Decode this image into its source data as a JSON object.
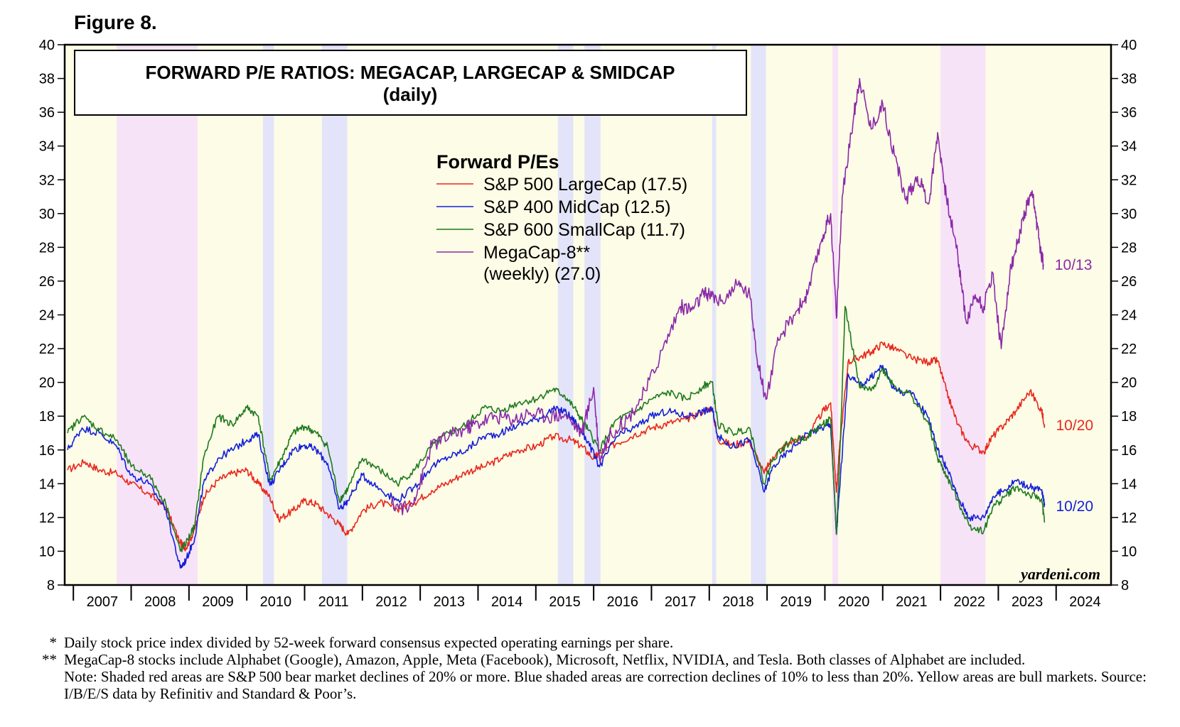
{
  "figure_label": "Figure 8.",
  "chart_data": {
    "type": "line",
    "title": "FORWARD P/E RATIOS: MEGACAP, LARGECAP & SMIDCAP",
    "subtitle": "(daily)",
    "legend_title": "Forward P/Es",
    "legend_position": "top-center",
    "source_credit": "yardeni.com",
    "xlim": [
      2006.85,
      2024.95
    ],
    "ylim": [
      8,
      40
    ],
    "y_ticks": [
      8,
      10,
      12,
      14,
      16,
      18,
      20,
      22,
      24,
      26,
      28,
      30,
      32,
      34,
      36,
      38,
      40
    ],
    "x_tick_labels": [
      "2007",
      "2008",
      "2009",
      "2010",
      "2011",
      "2012",
      "2013",
      "2014",
      "2015",
      "2016",
      "2017",
      "2018",
      "2019",
      "2020",
      "2021",
      "2022",
      "2023",
      "2024"
    ],
    "grid": false,
    "shaded_periods": [
      {
        "start": 2006.85,
        "end": 2007.75,
        "kind": "bull"
      },
      {
        "start": 2007.75,
        "end": 2009.15,
        "kind": "bear"
      },
      {
        "start": 2009.15,
        "end": 2010.28,
        "kind": "bull"
      },
      {
        "start": 2010.28,
        "end": 2010.47,
        "kind": "correction"
      },
      {
        "start": 2010.47,
        "end": 2011.3,
        "kind": "bull"
      },
      {
        "start": 2011.3,
        "end": 2011.74,
        "kind": "correction"
      },
      {
        "start": 2011.74,
        "end": 2015.38,
        "kind": "bull"
      },
      {
        "start": 2015.38,
        "end": 2015.65,
        "kind": "correction"
      },
      {
        "start": 2015.65,
        "end": 2015.84,
        "kind": "bull"
      },
      {
        "start": 2015.84,
        "end": 2016.12,
        "kind": "correction"
      },
      {
        "start": 2016.12,
        "end": 2018.05,
        "kind": "bull"
      },
      {
        "start": 2018.05,
        "end": 2018.12,
        "kind": "correction"
      },
      {
        "start": 2018.12,
        "end": 2018.72,
        "kind": "bull"
      },
      {
        "start": 2018.72,
        "end": 2018.98,
        "kind": "correction"
      },
      {
        "start": 2018.98,
        "end": 2020.13,
        "kind": "bull"
      },
      {
        "start": 2020.13,
        "end": 2020.23,
        "kind": "bear"
      },
      {
        "start": 2020.23,
        "end": 2022.0,
        "kind": "bull"
      },
      {
        "start": 2022.0,
        "end": 2022.78,
        "kind": "bear"
      },
      {
        "start": 2022.78,
        "end": 2024.95,
        "kind": "bull"
      }
    ],
    "series": [
      {
        "name": "S&P 500 LargeCap (17.5)",
        "color": "#e8281e",
        "end_label": "10/20",
        "x": [
          2006.9,
          2007.2,
          2007.45,
          2007.75,
          2008.0,
          2008.3,
          2008.6,
          2008.85,
          2008.95,
          2009.1,
          2009.25,
          2009.5,
          2009.75,
          2010.0,
          2010.2,
          2010.4,
          2010.55,
          2010.8,
          2011.0,
          2011.2,
          2011.4,
          2011.6,
          2011.75,
          2012.0,
          2012.3,
          2012.6,
          2012.9,
          2013.2,
          2013.5,
          2013.8,
          2014.1,
          2014.4,
          2014.7,
          2015.0,
          2015.3,
          2015.6,
          2015.8,
          2016.0,
          2016.1,
          2016.4,
          2016.7,
          2017.0,
          2017.3,
          2017.6,
          2017.9,
          2018.05,
          2018.15,
          2018.4,
          2018.7,
          2018.95,
          2019.1,
          2019.4,
          2019.7,
          2019.95,
          2020.1,
          2020.2,
          2020.25,
          2020.4,
          2020.6,
          2020.8,
          2021.0,
          2021.2,
          2021.5,
          2021.8,
          2021.95,
          2022.1,
          2022.3,
          2022.5,
          2022.75,
          2022.9,
          2023.1,
          2023.3,
          2023.55,
          2023.75,
          2023.8
        ],
        "values": [
          14.8,
          15.3,
          14.8,
          14.6,
          14.0,
          13.4,
          12.6,
          10.5,
          10.2,
          11.3,
          13.2,
          14.2,
          14.6,
          14.8,
          14.0,
          13.2,
          11.9,
          12.4,
          13.0,
          12.8,
          12.2,
          11.6,
          11.0,
          12.4,
          12.9,
          12.5,
          12.9,
          13.6,
          14.1,
          14.7,
          15.0,
          15.5,
          16.0,
          16.2,
          16.8,
          16.6,
          16.2,
          15.5,
          15.8,
          16.4,
          16.9,
          17.3,
          17.6,
          17.8,
          18.3,
          18.5,
          16.6,
          16.3,
          16.5,
          14.6,
          15.6,
          16.5,
          16.8,
          18.2,
          18.8,
          13.5,
          16.0,
          21.2,
          21.5,
          21.8,
          22.3,
          22.0,
          21.4,
          21.2,
          21.3,
          19.5,
          17.5,
          16.3,
          15.9,
          16.8,
          17.5,
          18.3,
          19.5,
          18.3,
          17.5
        ]
      },
      {
        "name": "S&P 400 MidCap (12.5)",
        "color": "#1420d8",
        "end_label": "10/20",
        "x": [
          2006.9,
          2007.15,
          2007.45,
          2007.75,
          2008.0,
          2008.3,
          2008.6,
          2008.85,
          2008.95,
          2009.1,
          2009.25,
          2009.5,
          2009.75,
          2010.0,
          2010.2,
          2010.4,
          2010.6,
          2010.8,
          2011.0,
          2011.2,
          2011.4,
          2011.6,
          2011.75,
          2012.0,
          2012.3,
          2012.6,
          2012.9,
          2013.2,
          2013.5,
          2013.8,
          2014.1,
          2014.4,
          2014.7,
          2015.0,
          2015.3,
          2015.5,
          2015.7,
          2015.9,
          2016.1,
          2016.4,
          2016.7,
          2017.0,
          2017.3,
          2017.6,
          2017.9,
          2018.05,
          2018.15,
          2018.4,
          2018.7,
          2018.95,
          2019.1,
          2019.4,
          2019.7,
          2019.95,
          2020.1,
          2020.2,
          2020.25,
          2020.4,
          2020.6,
          2020.8,
          2021.0,
          2021.2,
          2021.5,
          2021.8,
          2021.95,
          2022.1,
          2022.3,
          2022.5,
          2022.75,
          2022.9,
          2023.1,
          2023.3,
          2023.55,
          2023.75,
          2023.8
        ],
        "values": [
          16.0,
          17.3,
          17.0,
          16.2,
          14.5,
          14.0,
          12.5,
          9.0,
          9.5,
          10.8,
          14.0,
          15.5,
          16.0,
          16.6,
          16.9,
          13.9,
          15.0,
          16.0,
          16.3,
          16.0,
          15.2,
          12.5,
          13.0,
          14.5,
          13.7,
          13.0,
          13.8,
          15.0,
          15.6,
          16.0,
          16.8,
          17.0,
          17.5,
          17.8,
          18.4,
          18.3,
          17.6,
          16.5,
          15.0,
          16.8,
          17.3,
          18.0,
          18.3,
          18.0,
          18.3,
          18.4,
          16.8,
          16.2,
          16.6,
          13.5,
          15.0,
          16.0,
          17.0,
          17.3,
          17.5,
          11.0,
          13.5,
          20.5,
          19.8,
          20.3,
          21.0,
          19.6,
          19.3,
          17.9,
          16.0,
          15.0,
          13.2,
          12.0,
          12.0,
          13.2,
          13.6,
          14.2,
          13.8,
          13.6,
          12.7
        ]
      },
      {
        "name": "S&P 600 SmallCap (11.7)",
        "color": "#1f7a1f",
        "end_label": "",
        "x": [
          2006.9,
          2007.15,
          2007.45,
          2007.75,
          2008.0,
          2008.3,
          2008.6,
          2008.85,
          2008.95,
          2009.1,
          2009.25,
          2009.5,
          2009.75,
          2010.0,
          2010.2,
          2010.4,
          2010.6,
          2010.8,
          2011.0,
          2011.2,
          2011.4,
          2011.6,
          2011.75,
          2012.0,
          2012.3,
          2012.6,
          2012.9,
          2013.2,
          2013.5,
          2013.8,
          2014.1,
          2014.4,
          2014.7,
          2015.0,
          2015.3,
          2015.5,
          2015.7,
          2015.9,
          2016.1,
          2016.4,
          2016.7,
          2017.0,
          2017.3,
          2017.6,
          2017.9,
          2018.05,
          2018.15,
          2018.4,
          2018.7,
          2018.95,
          2019.1,
          2019.4,
          2019.7,
          2019.95,
          2020.1,
          2020.2,
          2020.25,
          2020.35,
          2020.6,
          2020.8,
          2021.0,
          2021.2,
          2021.5,
          2021.8,
          2021.95,
          2022.1,
          2022.3,
          2022.5,
          2022.75,
          2022.9,
          2023.1,
          2023.3,
          2023.55,
          2023.75,
          2023.8
        ],
        "values": [
          17.0,
          18.0,
          17.2,
          16.6,
          15.0,
          14.5,
          12.8,
          10.0,
          10.5,
          11.5,
          15.5,
          18.0,
          17.5,
          18.5,
          18.0,
          14.2,
          15.5,
          17.0,
          17.4,
          17.0,
          16.2,
          13.0,
          13.7,
          15.5,
          14.8,
          14.0,
          14.8,
          16.2,
          17.0,
          17.5,
          18.5,
          18.3,
          18.8,
          19.0,
          19.6,
          19.2,
          18.3,
          17.2,
          16.0,
          17.8,
          18.2,
          19.0,
          19.4,
          19.0,
          19.8,
          20.0,
          17.5,
          17.0,
          17.3,
          14.0,
          15.5,
          16.5,
          16.8,
          17.5,
          17.8,
          11.0,
          15.0,
          24.5,
          19.7,
          19.5,
          20.8,
          19.8,
          19.2,
          17.5,
          15.5,
          14.5,
          13.0,
          11.5,
          11.2,
          12.6,
          13.2,
          13.8,
          13.3,
          13.1,
          11.7
        ]
      },
      {
        "name": "MegaCap-8** (weekly) (27.0)",
        "color": "#8a2aa8",
        "end_label": "10/13",
        "x": [
          2012.5,
          2012.8,
          2013.0,
          2013.2,
          2013.5,
          2013.8,
          2014.0,
          2014.3,
          2014.6,
          2014.9,
          2015.2,
          2015.5,
          2015.8,
          2016.0,
          2016.1,
          2016.3,
          2016.6,
          2016.9,
          2017.2,
          2017.5,
          2017.7,
          2017.9,
          2018.0,
          2018.2,
          2018.5,
          2018.7,
          2018.85,
          2018.98,
          2019.2,
          2019.5,
          2019.7,
          2019.95,
          2020.1,
          2020.2,
          2020.3,
          2020.5,
          2020.6,
          2020.8,
          2021.0,
          2021.2,
          2021.4,
          2021.6,
          2021.8,
          2021.95,
          2022.1,
          2022.3,
          2022.45,
          2022.6,
          2022.75,
          2022.9,
          2023.05,
          2023.2,
          2023.35,
          2023.5,
          2023.6,
          2023.7,
          2023.78
        ],
        "values": [
          12.8,
          12.5,
          14.0,
          16.3,
          16.8,
          17.3,
          17.6,
          18.0,
          17.8,
          18.2,
          18.0,
          18.1,
          17.0,
          19.7,
          15.5,
          17.0,
          17.9,
          19.5,
          22.0,
          24.5,
          24.3,
          25.2,
          25.2,
          24.8,
          25.8,
          25.2,
          21.0,
          19.0,
          22.5,
          24.2,
          25.2,
          28.5,
          30.0,
          23.8,
          31.0,
          35.8,
          38.0,
          35.0,
          36.5,
          33.5,
          30.8,
          32.2,
          30.6,
          34.8,
          31.0,
          27.5,
          23.5,
          25.2,
          24.5,
          26.5,
          22.0,
          26.5,
          28.5,
          30.5,
          31.0,
          28.5,
          27.0
        ]
      }
    ]
  },
  "notes": [
    {
      "mark": "*",
      "text": "Daily stock price index divided by 52-week forward consensus expected operating earnings per share."
    },
    {
      "mark": "**",
      "text": "MegaCap-8 stocks include Alphabet (Google), Amazon, Apple, Meta (Facebook), Microsoft, Netflix, NVIDIA, and Tesla. Both classes of Alphabet are included."
    },
    {
      "mark": "",
      "text": "Note: Shaded red areas are S&P 500 bear market declines of 20% or more.  Blue shaded areas are correction declines of 10% to less than 20%. Yellow areas are bull markets. Source: I/B/E/S data by Refinitiv and Standard & Poor’s."
    }
  ]
}
